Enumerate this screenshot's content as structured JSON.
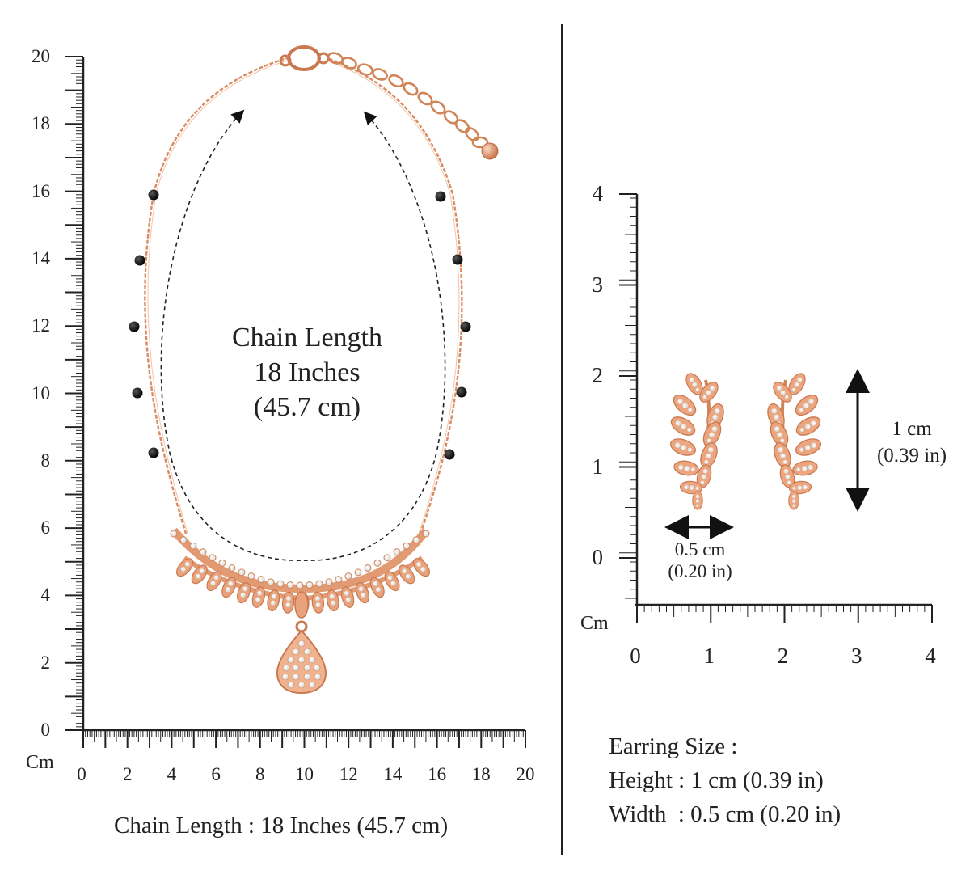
{
  "chain_panel": {
    "unit_label": "Cm",
    "y_ticks": [
      "20",
      "18",
      "16",
      "14",
      "12",
      "10",
      "8",
      "6",
      "4",
      "2",
      "0"
    ],
    "x_ticks": [
      "0",
      "2",
      "4",
      "6",
      "8",
      "10",
      "12",
      "14",
      "16",
      "18",
      "20"
    ],
    "center_label": [
      "Chain Length",
      "18 Inches",
      "(45.7 cm)"
    ],
    "caption": "Chain Length : 18 Inches (45.7 cm)"
  },
  "earring_panel": {
    "unit_label": "Cm",
    "y_ticks": [
      "4",
      "3",
      "2",
      "1",
      "0"
    ],
    "x_ticks": [
      "0",
      "1",
      "2",
      "3",
      "4"
    ],
    "height_label": [
      "1 cm",
      "(0.39 in)"
    ],
    "width_label": [
      "0.5 cm",
      "(0.20 in)"
    ],
    "info": {
      "title": "Earring Size :",
      "height_line": "Height : 1 cm (0.39 in)",
      "width_line": "Width  : 0.5 cm (0.20 in)"
    }
  },
  "colors": {
    "rose_gold": "#e29a72",
    "rose_gold_dark": "#c97850",
    "bead": "#111111",
    "ruler": "#222222"
  },
  "icons": [
    "necklace-image",
    "earring-left-image",
    "earring-right-image",
    "dimension-arrow-icon"
  ]
}
